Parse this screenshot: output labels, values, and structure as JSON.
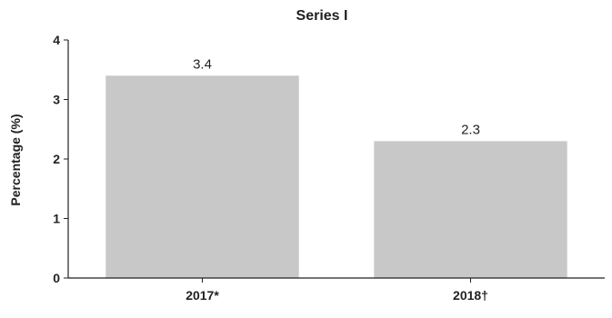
{
  "chart_data": {
    "type": "bar",
    "title": "Series I",
    "ylabel": "Percentage (%)",
    "xlabel": "",
    "categories": [
      "2017*",
      "2018†"
    ],
    "values": [
      3.4,
      2.3
    ],
    "data_labels": [
      "3.4",
      "2.3"
    ],
    "ylim": [
      0,
      4
    ],
    "yticks": [
      0,
      1,
      2,
      3,
      4
    ],
    "grid": false,
    "bar_color": "#c8c8c8",
    "axis_color": "#222222"
  }
}
